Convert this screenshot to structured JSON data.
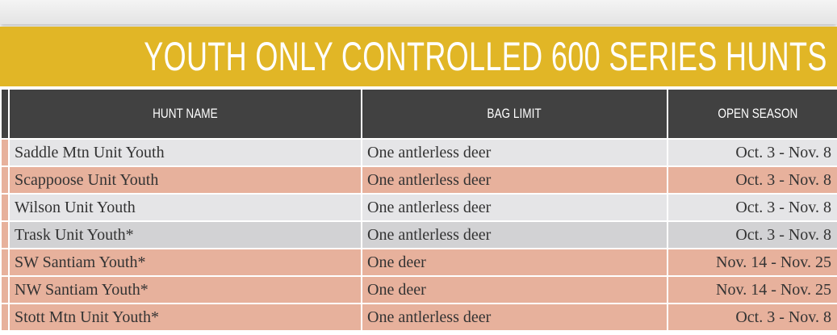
{
  "title": "YOUTH ONLY CONTROLLED 600 SERIES HUNTS",
  "table": {
    "headers": [
      "HUNT NAME",
      "BAG LIMIT",
      "OPEN SEASON"
    ],
    "rows": [
      [
        "Saddle Mtn Unit Youth",
        "One antlerless deer",
        "Oct. 3 - Nov. 8"
      ],
      [
        "Scappoose Unit Youth",
        "One antlerless deer",
        "Oct. 3 - Nov. 8"
      ],
      [
        "Wilson Unit Youth",
        "One antlerless deer",
        "Oct. 3 - Nov. 8"
      ],
      [
        "Trask Unit Youth*",
        "One antlerless deer",
        "Oct. 3 - Nov. 8"
      ],
      [
        "SW Santiam Youth*",
        "One deer",
        "Nov. 14 - Nov. 25"
      ],
      [
        "NW Santiam Youth*",
        "One deer",
        "Nov. 14 - Nov. 25"
      ],
      [
        "Stott Mtn Unit Youth*",
        "One antlerless deer",
        "Oct. 3 - Nov. 8"
      ]
    ]
  }
}
